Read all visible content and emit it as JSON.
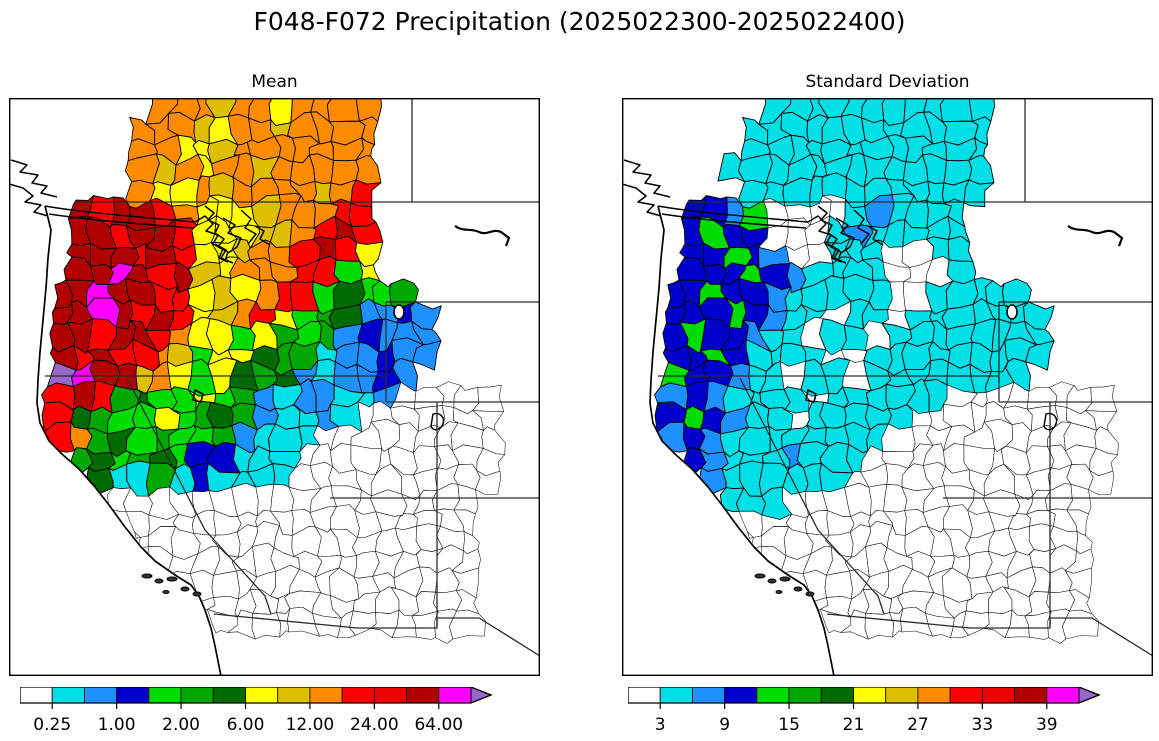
{
  "figure_title": "F048-F072 Precipitation (2025022300-2025022400)",
  "chart_data": {
    "type": "heatmap",
    "subtype": "choropleth-map-pair",
    "figure_title": "F048-F072 Precipitation (2025022300-2025022400)",
    "legend_position": "bottom",
    "palette": {
      "w": "#FFFFFF",
      "c": "#00E0E6",
      "b": "#1E90FF",
      "B": "#0000CD",
      "g": "#00DC00",
      "G": "#00A800",
      "d": "#006B00",
      "y": "#FFFF00",
      "o": "#DFC000",
      "O": "#FF8C00",
      "r": "#FF0000",
      "R": "#B20000",
      "m": "#FF00FF",
      "p": "#9966CC"
    },
    "panels": [
      {
        "id": "mean",
        "title": "Mean",
        "colorbar": {
          "segment_colors": [
            "#FFFFFF",
            "#00E0E6",
            "#1E90FF",
            "#0000CD",
            "#00DC00",
            "#00A800",
            "#006B00",
            "#FFFF00",
            "#DFC000",
            "#FF8C00",
            "#FF0000",
            "#EE0000",
            "#B20000",
            "#FF00FF"
          ],
          "arrow_color": "#9966CC",
          "tick_labels": [
            "0.25",
            "1.00",
            "2.00",
            "6.00",
            "12.00",
            "24.00",
            "64.00"
          ],
          "tick_boundary_indices": [
            1,
            3,
            5,
            7,
            9,
            11,
            13
          ]
        },
        "grid_cols": 26,
        "grid_rows": 28,
        "grid": [
          ".......OOOoOOyOOOO........",
          "......OOOoyOOoOOOO........",
          "......OOyyoOOOOOOO........",
          "......OoOyOOoOOOOO........",
          "......OyyOoOOOOoOr........",
          "...RrRRrOyyyoOOOrr........",
          "...RRrRRryyyooOrRr........",
          "...RRRrRryyoOOrRry........",
          "...RRmRrRoyOOOrrgy........",
          "..RRmRRrryoyOrrgdggG......",
          "..RRmRrRryoOrygGdbbBb.....",
          "..RRrRRrOyygyGgGbBbbb.....",
          "..RrRrrOogyydGGcbbBbb.....",
          "..pmRRoOygydGdbcbbBb......",
          "..rRrGdggygGbcbbccbwwwww..",
          "..rdGggygGdGbccbcwwwwwww..",
          "..rOGdgGggGbcccwwwwwwwww..",
          "...GdgGdgBBcccwwwwwwwwww..",
          "....dccGcBccccwwwwwwwwww..",
          ".....wwwwwwwwwwwwwwwwww...",
          "......wwwwwwwwwwwwwwwww...",
          "......wwwwwwwwwwwwwwwww...",
          ".......wwwwwwwwwwwwwwww...",
          "........wwwwwwwwwwwwwww...",
          ".........wwwwwwwwwwwwww...",
          "..........wwwwwwwwwwwww...",
          "..........................",
          ".........................."
        ]
      },
      {
        "id": "std",
        "title": "Standard Deviation",
        "colorbar": {
          "segment_colors": [
            "#FFFFFF",
            "#00E0E6",
            "#1E90FF",
            "#0000CD",
            "#00DC00",
            "#00A800",
            "#006B00",
            "#FFFF00",
            "#DFC000",
            "#FF8C00",
            "#FF0000",
            "#EE0000",
            "#B20000",
            "#FF00FF"
          ],
          "arrow_color": "#9966CC",
          "tick_labels": [
            "3",
            "9",
            "15",
            "21",
            "27",
            "33",
            "39"
          ],
          "tick_boundary_indices": [
            1,
            3,
            5,
            7,
            9,
            11,
            13
          ]
        },
        "grid_cols": 26,
        "grid_rows": 28,
        "grid": [
          ".......ccccccccccc........",
          "......cccccccccccc........",
          "......cccccccccccc........",
          ".....ccccccccccccc........",
          "......cccccccccccc........",
          "...BBbgwwwwcbcccc.........",
          "...BgBBwwwcbccccc.........",
          "...BBgBbwwcccwwcc.........",
          "...BBBgBbccccwwwc.........",
          "..BBgBBbcccccwwccccc......",
          "..BBBgBbccwccwccccccc.....",
          "..BgBBbccwccwcccccccc.....",
          "..BBgBccccwwccccccccc.....",
          "..gBBbccwccwcccccccc......",
          "..bBbccccwccccccwwwwwwww..",
          "..BgBbccwcccccwwwwwwwwww..",
          "..bBbccccccccwwwwwwwwwww..",
          "...Bbcccbcccwwwwwwwwwwww..",
          "....bccccccwwwwwwwwwwwww..",
          ".....cccwwwwwwwwwwwwwww...",
          "......wwwwwwwwwwwwwwwww...",
          "......wwwwwwwwwwwwwwwww...",
          ".......wwwwwwwwwwwwwwww...",
          "........wwwwwwwwwwwwwww...",
          ".........wwwwwwwwwwwwww...",
          "..........wwwwwwwwwwwww...",
          "..........................",
          ".........................."
        ]
      }
    ]
  }
}
